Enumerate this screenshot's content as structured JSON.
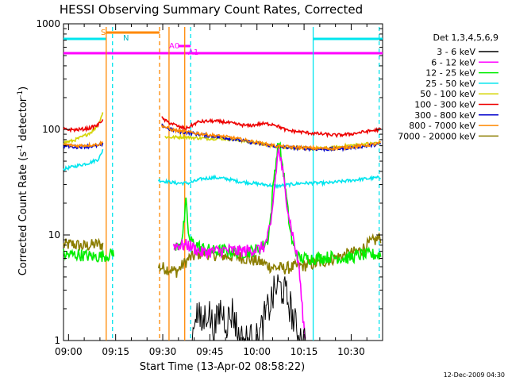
{
  "chart_data": {
    "type": "line",
    "title": "HESSI Observing Summary Count Rates, Corrected",
    "xlabel": "Start Time (13-Apr-02 08:58:22)",
    "ylabel_main": "Corrected Count Rate (s",
    "ylabel_sup1": "-1",
    "ylabel_mid": " detector",
    "ylabel_sup2": "-1",
    "ylabel_end": ")",
    "y_scale": "log",
    "ylim": [
      1,
      1000
    ],
    "xlim_minutes": [
      0,
      101.6
    ],
    "y_ticks": [
      {
        "value": 1,
        "label": "1"
      },
      {
        "value": 10,
        "label": "10"
      },
      {
        "value": 100,
        "label": "100"
      },
      {
        "value": 1000,
        "label": "1000"
      }
    ],
    "x_ticks": [
      {
        "t": 1.6,
        "label": "09:00"
      },
      {
        "t": 16.6,
        "label": "09:15"
      },
      {
        "t": 31.6,
        "label": "09:30"
      },
      {
        "t": 46.6,
        "label": "09:45"
      },
      {
        "t": 61.6,
        "label": "10:00"
      },
      {
        "t": 76.6,
        "label": "10:15"
      },
      {
        "t": 91.6,
        "label": "10:30"
      }
    ],
    "legend_title": "Det 1,3,4,5,6,9",
    "legend_position": "right",
    "series": [
      {
        "name": "3 - 6 keV",
        "color": "#000000",
        "points": [
          [
            41,
            1
          ],
          [
            42,
            2
          ],
          [
            44,
            1.4
          ],
          [
            46,
            2
          ],
          [
            48,
            1.2
          ],
          [
            50,
            2
          ],
          [
            52,
            1.5
          ],
          [
            54,
            1.9
          ],
          [
            56,
            1
          ],
          [
            62,
            1
          ],
          [
            64,
            1.6
          ],
          [
            66,
            2.3
          ],
          [
            68,
            3.3
          ],
          [
            70,
            3
          ],
          [
            72,
            2.2
          ],
          [
            74,
            1.3
          ],
          [
            76,
            1
          ],
          [
            77,
            1
          ]
        ]
      },
      {
        "name": "6 - 12 keV",
        "color": "#ff00ff",
        "points": [
          [
            35,
            8
          ],
          [
            38,
            8
          ],
          [
            40,
            8
          ],
          [
            44,
            6.8
          ],
          [
            48,
            7
          ],
          [
            52,
            7.2
          ],
          [
            56,
            7
          ],
          [
            60,
            7.2
          ],
          [
            62,
            7.3
          ],
          [
            64,
            7.8
          ],
          [
            66,
            12
          ],
          [
            67,
            25
          ],
          [
            68,
            50
          ],
          [
            68.5,
            65
          ],
          [
            69,
            55
          ],
          [
            70,
            35
          ],
          [
            71,
            22
          ],
          [
            72,
            14
          ],
          [
            73,
            10
          ],
          [
            74,
            7
          ],
          [
            75,
            5
          ],
          [
            76,
            2
          ],
          [
            77,
            1
          ]
        ]
      },
      {
        "name": "12 - 25 keV",
        "color": "#00ee00",
        "points": [
          [
            0,
            6.5
          ],
          [
            5,
            6.5
          ],
          [
            10,
            6.2
          ],
          [
            15,
            6.5
          ],
          [
            16,
            7
          ],
          [
            35,
            7
          ],
          [
            37,
            8.5
          ],
          [
            38,
            10
          ],
          [
            39,
            20
          ],
          [
            40,
            9
          ],
          [
            44,
            7.5
          ],
          [
            48,
            7
          ],
          [
            52,
            7.2
          ],
          [
            56,
            6.8
          ],
          [
            60,
            7
          ],
          [
            63,
            7.5
          ],
          [
            65,
            9
          ],
          [
            66,
            15
          ],
          [
            67,
            35
          ],
          [
            68,
            60
          ],
          [
            68.5,
            75
          ],
          [
            69,
            65
          ],
          [
            70,
            40
          ],
          [
            71,
            22
          ],
          [
            72,
            12
          ],
          [
            73,
            8
          ],
          [
            75,
            6
          ],
          [
            80,
            6
          ],
          [
            85,
            6.2
          ],
          [
            90,
            6
          ],
          [
            95,
            6.5
          ],
          [
            101,
            6.5
          ]
        ]
      },
      {
        "name": "25 - 50 keV",
        "color": "#00e5ee",
        "points": [
          [
            0,
            42
          ],
          [
            4,
            45
          ],
          [
            8,
            48
          ],
          [
            11,
            52
          ],
          [
            12,
            58
          ],
          [
            12.5,
            65
          ],
          [
            30,
            33
          ],
          [
            33,
            32
          ],
          [
            36,
            31
          ],
          [
            40,
            31
          ],
          [
            44,
            34
          ],
          [
            48,
            35
          ],
          [
            52,
            34
          ],
          [
            56,
            32
          ],
          [
            60,
            31
          ],
          [
            64,
            30
          ],
          [
            68,
            29
          ],
          [
            72,
            30
          ],
          [
            76,
            31
          ],
          [
            80,
            31
          ],
          [
            84,
            31
          ],
          [
            88,
            32
          ],
          [
            92,
            33
          ],
          [
            96,
            34
          ],
          [
            101,
            35
          ]
        ]
      },
      {
        "name": "50 - 100 keV",
        "color": "#d4d400",
        "points": [
          [
            0,
            75
          ],
          [
            3,
            78
          ],
          [
            6,
            85
          ],
          [
            9,
            95
          ],
          [
            11,
            110
          ],
          [
            12.5,
            145
          ],
          [
            32,
            85
          ],
          [
            35,
            84
          ],
          [
            38,
            85
          ],
          [
            42,
            83
          ],
          [
            46,
            82
          ],
          [
            50,
            82
          ],
          [
            54,
            80
          ],
          [
            58,
            77
          ],
          [
            62,
            74
          ],
          [
            66,
            70
          ],
          [
            70,
            68
          ],
          [
            74,
            67
          ],
          [
            78,
            66
          ],
          [
            82,
            66
          ],
          [
            86,
            67
          ],
          [
            90,
            70
          ],
          [
            95,
            72
          ],
          [
            101,
            75
          ]
        ]
      },
      {
        "name": "100 - 300 keV",
        "color": "#ee0000",
        "points": [
          [
            0,
            100
          ],
          [
            4,
            99
          ],
          [
            8,
            102
          ],
          [
            11,
            110
          ],
          [
            12.5,
            125
          ],
          [
            31,
            130
          ],
          [
            33,
            118
          ],
          [
            35,
            112
          ],
          [
            37,
            105
          ],
          [
            39,
            102
          ],
          [
            43,
            118
          ],
          [
            47,
            120
          ],
          [
            51,
            118
          ],
          [
            55,
            112
          ],
          [
            59,
            108
          ],
          [
            63,
            113
          ],
          [
            67,
            112
          ],
          [
            71,
            98
          ],
          [
            75,
            95
          ],
          [
            79,
            92
          ],
          [
            83,
            90
          ],
          [
            87,
            88
          ],
          [
            91,
            90
          ],
          [
            96,
            95
          ],
          [
            101,
            100
          ]
        ]
      },
      {
        "name": "300 - 800 keV",
        "color": "#0000cc",
        "points": [
          [
            0,
            70
          ],
          [
            4,
            68
          ],
          [
            8,
            69
          ],
          [
            11,
            70
          ],
          [
            12.5,
            72
          ],
          [
            31,
            110
          ],
          [
            34,
            100
          ],
          [
            37,
            95
          ],
          [
            41,
            92
          ],
          [
            45,
            88
          ],
          [
            49,
            85
          ],
          [
            53,
            82
          ],
          [
            57,
            78
          ],
          [
            61,
            74
          ],
          [
            65,
            71
          ],
          [
            69,
            68
          ],
          [
            73,
            67
          ],
          [
            77,
            66
          ],
          [
            81,
            65
          ],
          [
            85,
            65
          ],
          [
            89,
            66
          ],
          [
            93,
            68
          ],
          [
            97,
            70
          ],
          [
            101,
            73
          ]
        ]
      },
      {
        "name": "800 - 7000 keV",
        "color": "#ff8800",
        "points": [
          [
            0,
            72
          ],
          [
            4,
            70
          ],
          [
            8,
            71
          ],
          [
            11,
            72
          ],
          [
            12.5,
            75
          ],
          [
            31,
            110
          ],
          [
            34,
            100
          ],
          [
            37,
            96
          ],
          [
            41,
            93
          ],
          [
            45,
            90
          ],
          [
            49,
            87
          ],
          [
            53,
            84
          ],
          [
            57,
            80
          ],
          [
            61,
            76
          ],
          [
            65,
            72
          ],
          [
            69,
            69
          ],
          [
            73,
            68
          ],
          [
            77,
            67
          ],
          [
            81,
            66
          ],
          [
            85,
            66
          ],
          [
            89,
            67
          ],
          [
            93,
            69
          ],
          [
            97,
            71
          ],
          [
            101,
            74
          ]
        ]
      },
      {
        "name": "7000 - 20000 keV",
        "color": "#8b7d00",
        "points": [
          [
            0,
            8
          ],
          [
            3,
            8.2
          ],
          [
            6,
            7.8
          ],
          [
            9,
            8
          ],
          [
            11,
            8.2
          ],
          [
            12.5,
            8
          ],
          [
            30,
            5
          ],
          [
            33,
            4.8
          ],
          [
            36,
            4.5
          ],
          [
            40,
            6
          ],
          [
            44,
            6.8
          ],
          [
            48,
            6.5
          ],
          [
            52,
            6.3
          ],
          [
            56,
            6.2
          ],
          [
            60,
            5.8
          ],
          [
            63,
            5.5
          ],
          [
            66,
            5
          ],
          [
            70,
            4.8
          ],
          [
            74,
            5
          ],
          [
            78,
            5.2
          ],
          [
            82,
            5.5
          ],
          [
            86,
            6
          ],
          [
            90,
            6.5
          ],
          [
            94,
            7
          ],
          [
            98,
            8.5
          ],
          [
            101,
            9.5
          ]
        ]
      }
    ],
    "annotations": {
      "saa_label": "S",
      "night_label": "N",
      "atten_label_1": "A0",
      "atten_label_2": "A1"
    },
    "timestamp": "12-Dec-2009 04:30"
  }
}
